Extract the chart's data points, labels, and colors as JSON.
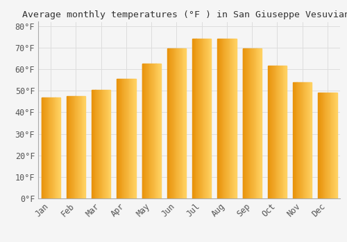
{
  "title": "Average monthly temperatures (°F ) in San Giuseppe Vesuviano",
  "months": [
    "Jan",
    "Feb",
    "Mar",
    "Apr",
    "May",
    "Jun",
    "Jul",
    "Aug",
    "Sep",
    "Oct",
    "Nov",
    "Dec"
  ],
  "values": [
    47,
    47.5,
    50.5,
    55.5,
    62.5,
    69.5,
    74,
    74,
    69.5,
    61.5,
    54,
    49
  ],
  "bar_color_left": "#E8920A",
  "bar_color_right": "#FFD060",
  "background_color": "#F5F5F5",
  "ylim": [
    0,
    82
  ],
  "yticks": [
    0,
    10,
    20,
    30,
    40,
    50,
    60,
    70,
    80
  ],
  "ytick_labels": [
    "0°F",
    "10°F",
    "20°F",
    "30°F",
    "40°F",
    "50°F",
    "60°F",
    "70°F",
    "80°F"
  ],
  "title_fontsize": 9.5,
  "tick_fontsize": 8.5,
  "grid_color": "#DDDDDD",
  "font_family": "monospace"
}
